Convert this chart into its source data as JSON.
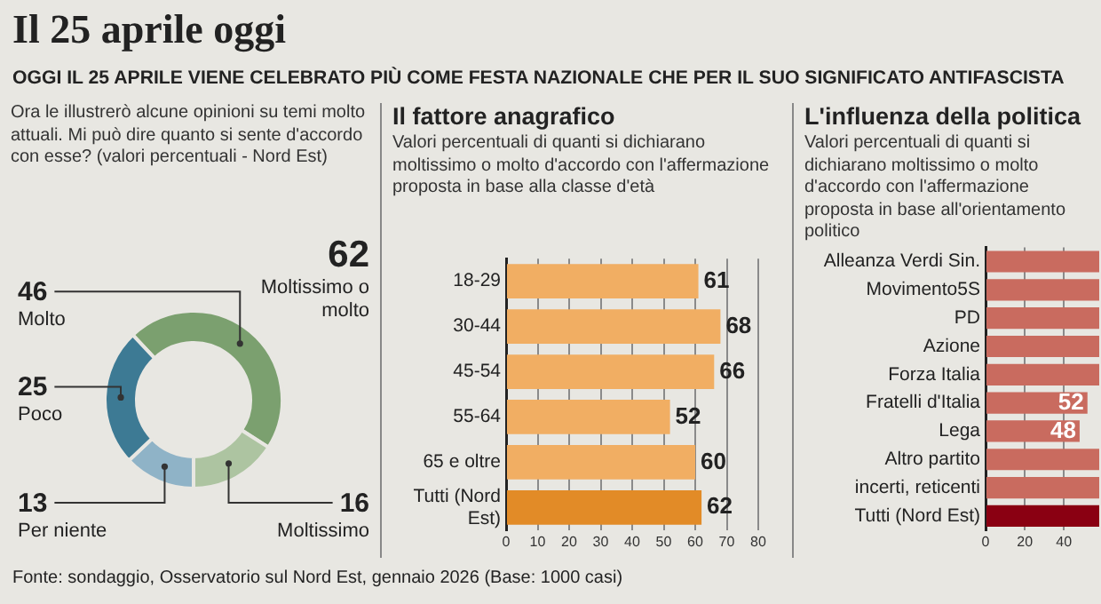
{
  "chart_data": [
    {
      "type": "donut",
      "title": "Il 25 aprile oggi",
      "subtitle": "OGGI IL 25 APRILE VIENE CELEBRATO PIÙ COME FESTA NAZIONALE CHE PER IL SUO SIGNIFICATO ANTIFASCISTA",
      "annotations": [
        "Ora le illustrerò alcune opinioni su temi molto attuali. Mi può dire quanto si sente d'accordo con esse? (valori percentuali - Nord Est)",
        "62",
        "Moltissimo o molto",
        "Fonte: sondaggio, Osservatorio sul Nord Est, gennaio 2026 (Base: 1000 casi)"
      ],
      "categories": [
        "Molto",
        "Moltissimo",
        "Per niente",
        "Poco"
      ],
      "values": [
        46,
        16,
        13,
        25
      ],
      "colors": [
        "#7ba06f",
        "#adc4a1",
        "#8fb3c7",
        "#3d7a94"
      ],
      "data_labels": true
    },
    {
      "type": "bar",
      "orientation": "horizontal",
      "title": "Il fattore anagrafico",
      "subtitle": "Valori percentuali di quanti si dichiarano moltissimo o molto d'accordo con l'affermazione proposta in base alla classe d'età",
      "categories": [
        "18-29",
        "30-44",
        "45-54",
        "55-64",
        "65 e oltre",
        "Tutti (Nord Est)"
      ],
      "values": [
        61,
        68,
        66,
        52,
        60,
        62
      ],
      "colors": [
        "#f1ae63",
        "#f1ae63",
        "#f1ae63",
        "#f1ae63",
        "#f1ae63",
        "#e28b27"
      ],
      "xlim": [
        0,
        80
      ],
      "xticks": [
        0,
        10,
        20,
        30,
        40,
        50,
        60,
        70,
        80
      ],
      "grid": "x",
      "data_labels": true
    },
    {
      "type": "bar",
      "orientation": "horizontal",
      "title": "L'influenza della politica",
      "subtitle": "Valori percentuali di quanti si dichiarano moltissimo o molto d'accordo con l'affermazione proposta in base all'orientamento politico",
      "categories": [
        "Alleanza Verdi Sin.",
        "Movimento5S",
        "PD",
        "Azione",
        "Forza Italia",
        "Fratelli d'Italia",
        "Lega",
        "Altro partito",
        "incerti, reticenti",
        "Tutti (Nord Est)"
      ],
      "values": [
        58,
        58,
        58,
        58,
        58,
        52,
        48,
        58,
        58,
        58
      ],
      "colors": [
        "#c96b5f",
        "#c96b5f",
        "#c96b5f",
        "#c96b5f",
        "#c96b5f",
        "#c96b5f",
        "#c96b5f",
        "#c96b5f",
        "#c96b5f",
        "#8a0012"
      ],
      "value_labels": [
        null,
        null,
        null,
        null,
        null,
        "52",
        "48",
        null,
        null,
        null
      ],
      "xlim": [
        0,
        58
      ],
      "xticks": [
        0,
        20,
        40
      ],
      "grid": "x"
    }
  ]
}
